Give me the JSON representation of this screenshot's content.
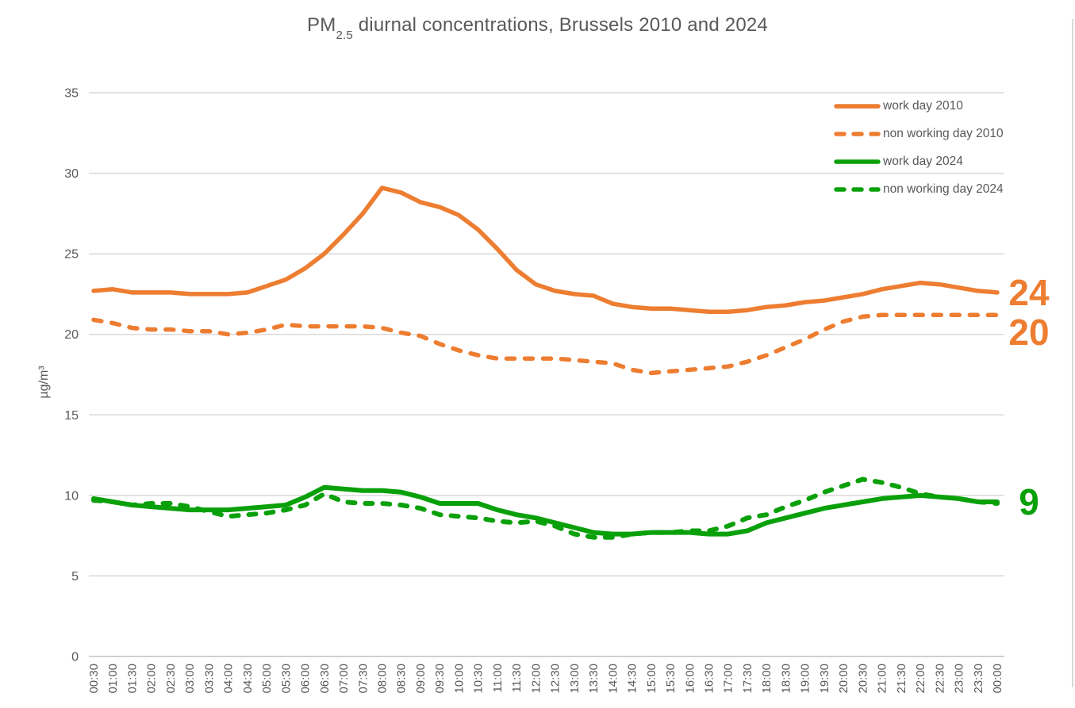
{
  "title": {
    "prefix": "PM",
    "subscript": "2.5",
    "suffix": " diurnal concentrations, Brussels 2010 and 2024"
  },
  "y_axis": {
    "label": "µg/m³",
    "ticks": [
      0,
      5,
      10,
      15,
      20,
      25,
      30,
      35
    ]
  },
  "legend": [
    {
      "label": "work day 2010",
      "color": "#ED7D31",
      "dashed": false
    },
    {
      "label": "non working day 2010",
      "color": "#ED7D31",
      "dashed": true
    },
    {
      "label": "work day 2024",
      "color": "#0AA00A",
      "dashed": false
    },
    {
      "label": "non working day 2024",
      "color": "#0AA00A",
      "dashed": true
    }
  ],
  "end_labels": [
    {
      "text": "24",
      "color": "#ED7D31",
      "anchor_series": 0
    },
    {
      "text": "20",
      "color": "#ED7D31",
      "anchor_series": 1
    },
    {
      "text": "9",
      "color": "#0AA00A",
      "anchor_series": 2
    }
  ],
  "chart_data": {
    "type": "line",
    "title": "PM2.5 diurnal concentrations, Brussels 2010 and 2024",
    "xlabel": "",
    "ylabel": "µg/m³",
    "ylim": [
      0,
      35
    ],
    "grid": true,
    "legend_position": "top-right",
    "x": [
      "00:30",
      "01:00",
      "01:30",
      "02:00",
      "02:30",
      "03:00",
      "03:30",
      "04:00",
      "04:30",
      "05:00",
      "05:30",
      "06:00",
      "06:30",
      "07:00",
      "07:30",
      "08:00",
      "08:30",
      "09:00",
      "09:30",
      "10:00",
      "10:30",
      "11:00",
      "11:30",
      "12:00",
      "12:30",
      "13:00",
      "13:30",
      "14:00",
      "14:30",
      "15:00",
      "15:30",
      "16:00",
      "16:30",
      "17:00",
      "17:30",
      "18:00",
      "18:30",
      "19:00",
      "19:30",
      "20:00",
      "20:30",
      "21:00",
      "21:30",
      "22:00",
      "22:30",
      "23:00",
      "23:30",
      "00:00"
    ],
    "series": [
      {
        "name": "work day 2010",
        "color": "#ED7D31",
        "style": "solid",
        "values": [
          22.7,
          22.8,
          22.6,
          22.6,
          22.6,
          22.5,
          22.5,
          22.5,
          22.6,
          23.0,
          23.4,
          24.1,
          25.0,
          26.2,
          27.5,
          29.1,
          28.8,
          28.2,
          27.9,
          27.4,
          26.5,
          25.3,
          24.0,
          23.1,
          22.7,
          22.5,
          22.4,
          21.9,
          21.7,
          21.6,
          21.6,
          21.5,
          21.4,
          21.4,
          21.5,
          21.7,
          21.8,
          22.0,
          22.1,
          22.3,
          22.5,
          22.8,
          23.0,
          23.2,
          23.1,
          22.9,
          22.7,
          22.6
        ]
      },
      {
        "name": "non working day 2010",
        "color": "#ED7D31",
        "style": "dashed",
        "values": [
          20.9,
          20.7,
          20.4,
          20.3,
          20.3,
          20.2,
          20.2,
          20.0,
          20.1,
          20.3,
          20.6,
          20.5,
          20.5,
          20.5,
          20.5,
          20.4,
          20.1,
          19.9,
          19.4,
          19.0,
          18.7,
          18.5,
          18.5,
          18.5,
          18.5,
          18.4,
          18.3,
          18.2,
          17.8,
          17.6,
          17.7,
          17.8,
          17.9,
          18.0,
          18.3,
          18.7,
          19.2,
          19.7,
          20.3,
          20.8,
          21.1,
          21.2,
          21.2,
          21.2,
          21.2,
          21.2,
          21.2,
          21.2
        ]
      },
      {
        "name": "work day 2024",
        "color": "#0AA00A",
        "style": "solid",
        "values": [
          9.8,
          9.6,
          9.4,
          9.3,
          9.2,
          9.1,
          9.1,
          9.1,
          9.2,
          9.3,
          9.4,
          9.9,
          10.5,
          10.4,
          10.3,
          10.3,
          10.2,
          9.9,
          9.5,
          9.5,
          9.5,
          9.1,
          8.8,
          8.6,
          8.3,
          8.0,
          7.7,
          7.6,
          7.6,
          7.7,
          7.7,
          7.7,
          7.6,
          7.6,
          7.8,
          8.3,
          8.6,
          8.9,
          9.2,
          9.4,
          9.6,
          9.8,
          9.9,
          10.0,
          9.9,
          9.8,
          9.6,
          9.6
        ]
      },
      {
        "name": "non working day 2024",
        "color": "#0AA00A",
        "style": "dashed",
        "values": [
          9.7,
          9.6,
          9.4,
          9.5,
          9.5,
          9.3,
          9.0,
          8.7,
          8.8,
          8.9,
          9.1,
          9.4,
          10.1,
          9.6,
          9.5,
          9.5,
          9.4,
          9.2,
          8.8,
          8.7,
          8.6,
          8.4,
          8.3,
          8.4,
          8.1,
          7.6,
          7.4,
          7.4,
          7.6,
          7.7,
          7.7,
          7.8,
          7.8,
          8.1,
          8.6,
          8.8,
          9.3,
          9.7,
          10.2,
          10.6,
          11.0,
          10.8,
          10.5,
          10.1,
          9.9,
          9.8,
          9.6,
          9.5
        ]
      }
    ]
  }
}
